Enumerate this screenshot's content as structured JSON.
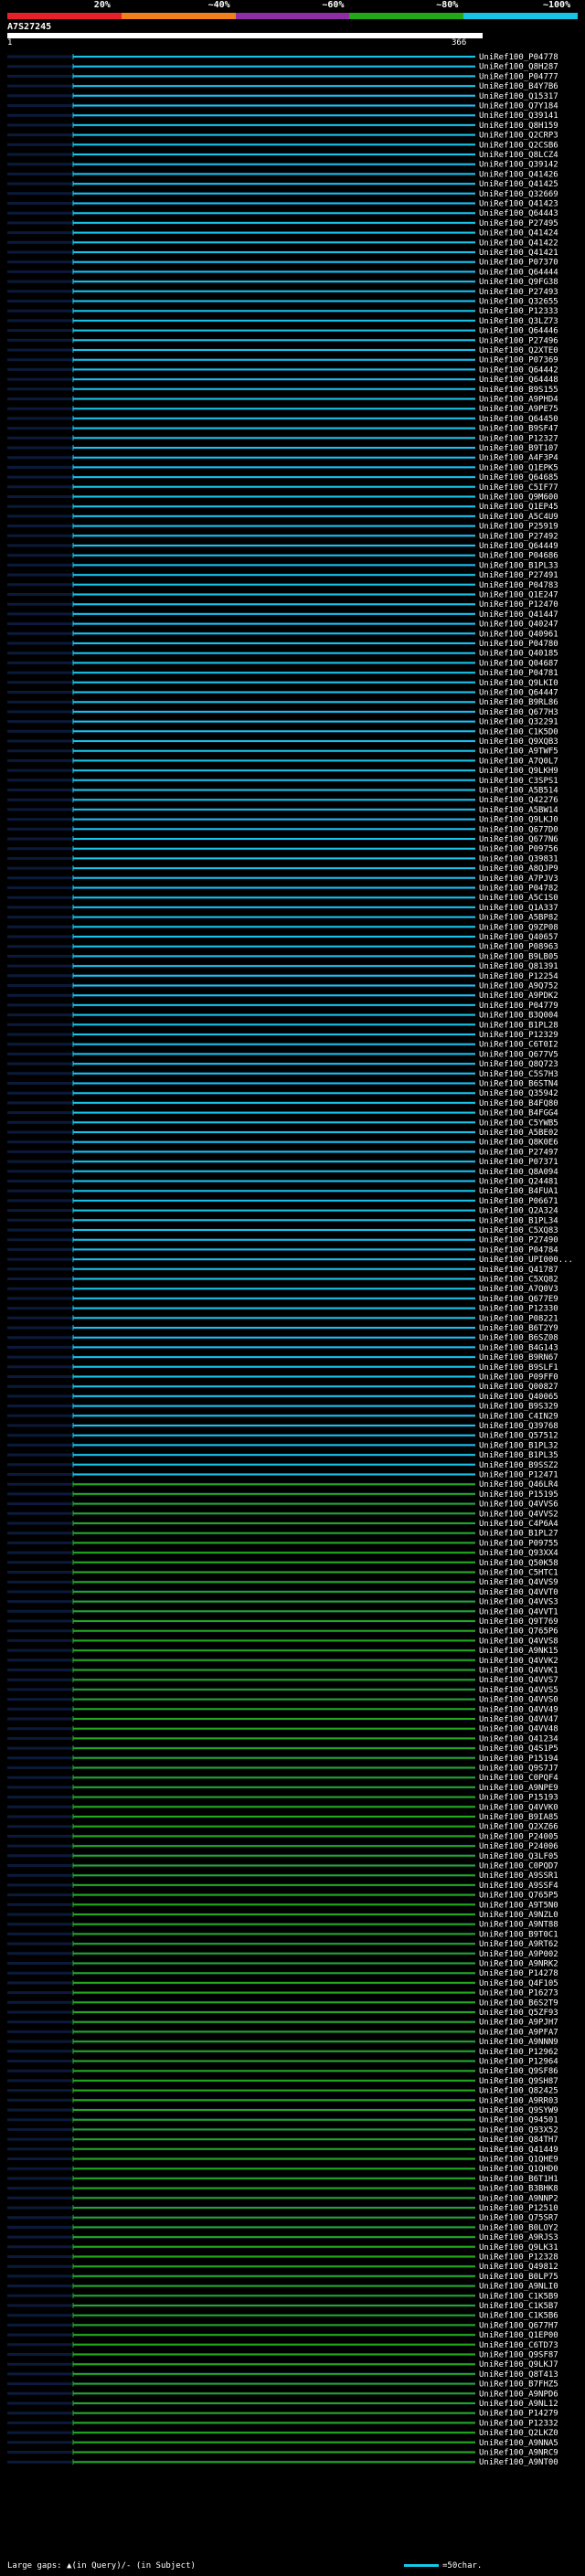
{
  "legend": {
    "labels": [
      "20%",
      "~40%",
      "~60%",
      "~80%",
      "~100%"
    ],
    "colors": [
      "#e8202a",
      "#f07f1c",
      "#8e2ea4",
      "#22a818",
      "#17c4e6"
    ]
  },
  "query": {
    "title": "A7S27245",
    "start": "1",
    "end": "366"
  },
  "footer": {
    "text": "Large gaps: ▲(in Query)/- (in Subject)",
    "scale": "=50char."
  },
  "hits": [
    "UniRef100_P04778",
    "UniRef100_Q8H287",
    "UniRef100_P04777",
    "UniRef100_B4Y7B6",
    "UniRef100_Q15317",
    "UniRef100_Q7Y184",
    "UniRef100_Q39141",
    "UniRef100_Q8H159",
    "UniRef100_Q2CRP3",
    "UniRef100_Q2CSB6",
    "UniRef100_Q8LCZ4",
    "UniRef100_Q39142",
    "UniRef100_Q41426",
    "UniRef100_Q41425",
    "UniRef100_Q32669",
    "UniRef100_Q41423",
    "UniRef100_Q64443",
    "UniRef100_P27495",
    "UniRef100_Q41424",
    "UniRef100_Q41422",
    "UniRef100_Q41421",
    "UniRef100_P07370",
    "UniRef100_Q64444",
    "UniRef100_Q9FG38",
    "UniRef100_P27493",
    "UniRef100_Q32655",
    "UniRef100_P12333",
    "UniRef100_Q3LZ73",
    "UniRef100_Q64446",
    "UniRef100_P27496",
    "UniRef100_Q2XTE0",
    "UniRef100_P07369",
    "UniRef100_Q64442",
    "UniRef100_Q64448",
    "UniRef100_B9S155",
    "UniRef100_A9PHD4",
    "UniRef100_A9PE75",
    "UniRef100_Q64450",
    "UniRef100_B9SF47",
    "UniRef100_P12327",
    "UniRef100_B9T107",
    "UniRef100_A4F3P4",
    "UniRef100_Q1EPK5",
    "UniRef100_Q64685",
    "UniRef100_C5IF77",
    "UniRef100_Q9M600",
    "UniRef100_Q1EP45",
    "UniRef100_A5C4U9",
    "UniRef100_P25919",
    "UniRef100_P27492",
    "UniRef100_Q64449",
    "UniRef100_P04686",
    "UniRef100_B1PL33",
    "UniRef100_P27491",
    "UniRef100_P04783",
    "UniRef100_Q1E247",
    "UniRef100_P12470",
    "UniRef100_Q41447",
    "UniRef100_Q40247",
    "UniRef100_Q40961",
    "UniRef100_P04780",
    "UniRef100_Q40185",
    "UniRef100_Q04687",
    "UniRef100_P04781",
    "UniRef100_Q9LKI0",
    "UniRef100_Q64447",
    "UniRef100_B9RL86",
    "UniRef100_Q677H3",
    "UniRef100_Q32291",
    "UniRef100_C1K5D0",
    "UniRef100_Q9XQB3",
    "UniRef100_A9TWF5",
    "UniRef100_A7Q0L7",
    "UniRef100_Q9LKH9",
    "UniRef100_C3SPS1",
    "UniRef100_A5B514",
    "UniRef100_Q42276",
    "UniRef100_A5BW14",
    "UniRef100_Q9LKJ0",
    "UniRef100_Q677D0",
    "UniRef100_Q677N6",
    "UniRef100_P09756",
    "UniRef100_Q39831",
    "UniRef100_A8QJP9",
    "UniRef100_A7PJV3",
    "UniRef100_P04782",
    "UniRef100_A5C1S0",
    "UniRef100_Q1A337",
    "UniRef100_A5BP82",
    "UniRef100_Q9ZP08",
    "UniRef100_Q40657",
    "UniRef100_P08963",
    "UniRef100_B9LB05",
    "UniRef100_Q81391",
    "UniRef100_P12254",
    "UniRef100_A9Q752",
    "UniRef100_A9PDK2",
    "UniRef100_P04779",
    "UniRef100_B3Q004",
    "UniRef100_B1PL28",
    "UniRef100_P12329",
    "UniRef100_C6T0I2",
    "UniRef100_Q677V5",
    "UniRef100_Q8Q723",
    "UniRef100_C5S7H3",
    "UniRef100_B6STN4",
    "UniRef100_Q35942",
    "UniRef100_B4FQ80",
    "UniRef100_B4FGG4",
    "UniRef100_C5YWB5",
    "UniRef100_A5BE02",
    "UniRef100_Q8K0E6",
    "UniRef100_P27497",
    "UniRef100_P07371",
    "UniRef100_Q8A094",
    "UniRef100_Q24481",
    "UniRef100_B4FUA1",
    "UniRef100_P06671",
    "UniRef100_Q2A324",
    "UniRef100_B1PL34",
    "UniRef100_C5XQ83",
    "UniRef100_P27490",
    "UniRef100_P04784",
    "UniRef100_UPI000...",
    "UniRef100_Q41787",
    "UniRef100_C5XQ82",
    "UniRef100_A7Q0V3",
    "UniRef100_Q677E9",
    "UniRef100_P12330",
    "UniRef100_P08221",
    "UniRef100_B6T2Y9",
    "UniRef100_B6SZ08",
    "UniRef100_B4G143",
    "UniRef100_B9RN67",
    "UniRef100_B9SLF1",
    "UniRef100_P09FF0",
    "UniRef100_Q00827",
    "UniRef100_Q40065",
    "UniRef100_B9S329",
    "UniRef100_C4IN29",
    "UniRef100_Q39768",
    "UniRef100_Q57512",
    "UniRef100_B1PL32",
    "UniRef100_B1PL35",
    "UniRef100_B9SSZ2",
    "UniRef100_P12471",
    "UniRef100_Q46LR4",
    "UniRef100_P15195",
    "UniRef100_Q4VVS6",
    "UniRef100_Q4VVS2",
    "UniRef100_C4P6A4",
    "UniRef100_B1PL27",
    "UniRef100_P09755",
    "UniRef100_Q93XX4",
    "UniRef100_Q50K58",
    "UniRef100_C5HTC1",
    "UniRef100_Q4VVS9",
    "UniRef100_Q4VVT0",
    "UniRef100_Q4VVS3",
    "UniRef100_Q4VVT1",
    "UniRef100_Q9T769",
    "UniRef100_Q765P6",
    "UniRef100_Q4VVS8",
    "UniRef100_A9NK15",
    "UniRef100_Q4VVK2",
    "UniRef100_Q4VVK1",
    "UniRef100_Q4VVS7",
    "UniRef100_Q4VVS5",
    "UniRef100_Q4VVS0",
    "UniRef100_Q4VV49",
    "UniRef100_Q4VV47",
    "UniRef100_Q4VV48",
    "UniRef100_Q41234",
    "UniRef100_Q4S1P5",
    "UniRef100_P15194",
    "UniRef100_Q9S7J7",
    "UniRef100_C0PQF4",
    "UniRef100_A9NPE9",
    "UniRef100_P15193",
    "UniRef100_Q4VVK0",
    "UniRef100_B9IA85",
    "UniRef100_Q2XZ66",
    "UniRef100_P24005",
    "UniRef100_P24006",
    "UniRef100_Q3LF05",
    "UniRef100_C0PQD7",
    "UniRef100_A9SSR1",
    "UniRef100_A9SSF4",
    "UniRef100_Q765P5",
    "UniRef100_A9T5N0",
    "UniRef100_A9NZL0",
    "UniRef100_A9NT88",
    "UniRef100_B9T0C1",
    "UniRef100_A9RT62",
    "UniRef100_A9P002",
    "UniRef100_A9NRK2",
    "UniRef100_P14278",
    "UniRef100_Q4F105",
    "UniRef100_P16273",
    "UniRef100_B6S2T9",
    "UniRef100_Q5ZF93",
    "UniRef100_A9PJH7",
    "UniRef100_A9PFA7",
    "UniRef100_A9NNN9",
    "UniRef100_P12962",
    "UniRef100_P12964",
    "UniRef100_Q9SF86",
    "UniRef100_Q9SH87",
    "UniRef100_Q82425",
    "UniRef100_A9RR03",
    "UniRef100_Q9SYW9",
    "UniRef100_Q94501",
    "UniRef100_Q93X52",
    "UniRef100_Q84TH7",
    "UniRef100_Q41449",
    "UniRef100_Q1QHE9",
    "UniRef100_Q1QHD0",
    "UniRef100_B6T1H1",
    "UniRef100_B3BHK8",
    "UniRef100_A9NNP2",
    "UniRef100_P12510",
    "UniRef100_Q75SR7",
    "UniRef100_B0LOY2",
    "UniRef100_A9RJS3",
    "UniRef100_Q9LK31",
    "UniRef100_P12328",
    "UniRef100_Q49812",
    "UniRef100_B0LP75",
    "UniRef100_A9NLI0",
    "UniRef100_C1K5B9",
    "UniRef100_C1K5B7",
    "UniRef100_C1K5B6",
    "UniRef100_Q677H7",
    "UniRef100_Q1EP00",
    "UniRef100_C6TD73",
    "UniRef100_Q9SF87",
    "UniRef100_Q9LKJ7",
    "UniRef100_Q8T413",
    "UniRef100_B7FHZ5",
    "UniRef100_A9NPD6",
    "UniRef100_A9NL12",
    "UniRef100_P14279",
    "UniRef100_P12332",
    "UniRef100_Q2LKZ0",
    "UniRef100_A9NNA5",
    "UniRef100_A9NRC9",
    "UniRef100_A9NT00"
  ]
}
